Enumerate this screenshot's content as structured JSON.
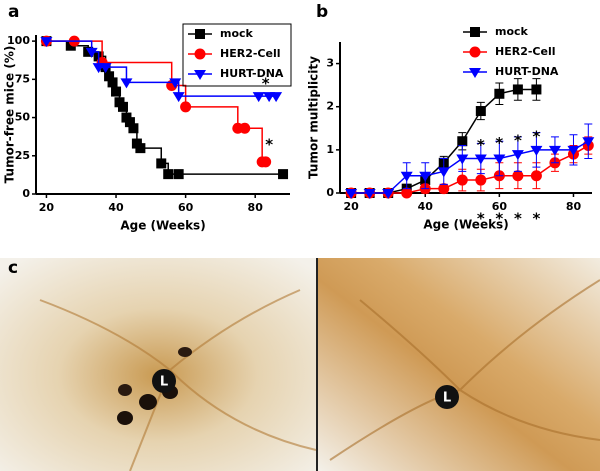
{
  "chart_data": [
    {
      "type": "step",
      "panel_label": "a",
      "x_label": "Age (Weeks)",
      "y_label": "Tumor-free mice (%)",
      "xlim": [
        17,
        90
      ],
      "xticks": [
        20,
        40,
        60,
        80
      ],
      "ylim": [
        0,
        104
      ],
      "yticks": [
        0,
        25,
        50,
        75,
        100
      ],
      "legend": "upper right",
      "legend_box": true,
      "annotations": [
        "*",
        "*"
      ],
      "series": [
        {
          "name": "mock",
          "color": "#000000",
          "marker": "square",
          "x": [
            20,
            27,
            32,
            35,
            37,
            38,
            39,
            40,
            41,
            42,
            43,
            44,
            45,
            46,
            47,
            53,
            55,
            58,
            88
          ],
          "values": [
            100,
            97,
            93,
            90,
            83,
            77,
            73,
            67,
            60,
            57,
            50,
            47,
            43,
            33,
            30,
            20,
            13,
            13,
            13
          ]
        },
        {
          "name": "HER2-Cell",
          "color": "#ff0000",
          "marker": "circle",
          "x": [
            20,
            28,
            36,
            56,
            60,
            75,
            77,
            82,
            83
          ],
          "values": [
            100,
            100,
            86,
            71,
            57,
            43,
            43,
            21,
            21
          ]
        },
        {
          "name": "HURT-DNA",
          "color": "#0000ff",
          "marker": "triangle-down",
          "x": [
            20,
            33,
            35,
            37,
            43,
            57,
            58,
            81,
            84,
            86
          ],
          "values": [
            100,
            93,
            83,
            83,
            73,
            73,
            64,
            64,
            64,
            64
          ]
        }
      ]
    },
    {
      "type": "line",
      "panel_label": "b",
      "x_label": "Age (Weeks)",
      "y_label": "Tumor multiplicity",
      "xlim": [
        17,
        85
      ],
      "xticks": [
        20,
        40,
        60,
        80
      ],
      "ylim": [
        0,
        3.5
      ],
      "yticks": [
        0,
        1,
        2,
        3
      ],
      "legend": "upper left",
      "legend_box": false,
      "annotations": [
        "*",
        "*",
        "*",
        "*",
        "*",
        "*",
        "*",
        "*"
      ],
      "series": [
        {
          "name": "mock",
          "color": "#000000",
          "marker": "square",
          "x": [
            20,
            25,
            30,
            35,
            40,
            45,
            50,
            55,
            60,
            65,
            70
          ],
          "values": [
            0,
            0,
            0,
            0.1,
            0.3,
            0.7,
            1.2,
            1.9,
            2.3,
            2.4,
            2.4
          ],
          "errors": [
            0,
            0,
            0,
            0.1,
            0.1,
            0.15,
            0.2,
            0.2,
            0.25,
            0.25,
            0.25
          ]
        },
        {
          "name": "HER2-Cell",
          "color": "#ff0000",
          "marker": "circle",
          "x": [
            20,
            25,
            30,
            35,
            40,
            45,
            50,
            55,
            60,
            65,
            70,
            75,
            80,
            84
          ],
          "values": [
            0,
            0,
            0,
            0,
            0.1,
            0.1,
            0.3,
            0.3,
            0.4,
            0.4,
            0.4,
            0.7,
            0.9,
            1.1
          ],
          "errors": [
            0,
            0,
            0,
            0,
            0.1,
            0.1,
            0.25,
            0.25,
            0.3,
            0.3,
            0.3,
            0.2,
            0.2,
            0.2
          ]
        },
        {
          "name": "HURT-DNA",
          "color": "#0000ff",
          "marker": "triangle-down",
          "x": [
            20,
            25,
            30,
            35,
            40,
            45,
            50,
            55,
            60,
            65,
            70,
            75,
            80,
            84
          ],
          "values": [
            0,
            0,
            0,
            0.4,
            0.4,
            0.5,
            0.8,
            0.8,
            0.8,
            0.9,
            1.0,
            1.0,
            1.0,
            1.2
          ],
          "errors": [
            0,
            0,
            0,
            0.3,
            0.3,
            0.3,
            0.3,
            0.35,
            0.4,
            0.4,
            0.4,
            0.3,
            0.35,
            0.4
          ]
        }
      ]
    }
  ],
  "photo_panel": {
    "panel_label": "c",
    "markers": [
      "L",
      "L"
    ]
  }
}
